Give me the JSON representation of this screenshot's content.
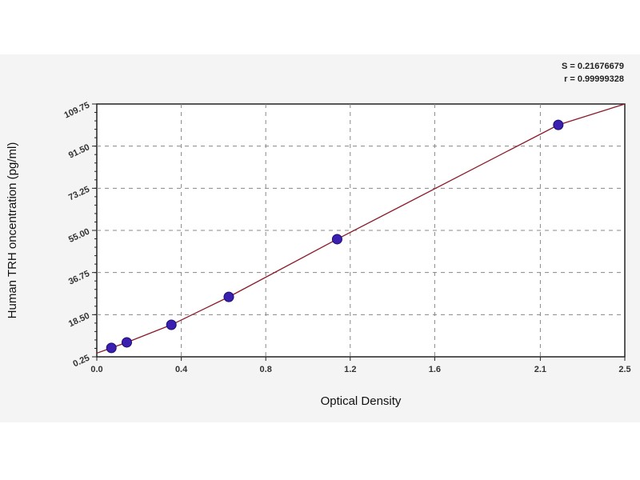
{
  "chart_data": {
    "type": "scatter",
    "xlabel": "Optical Density",
    "ylabel": "Human TRH oncentration (pg/ml)",
    "xlim": [
      0.0,
      2.5
    ],
    "ylim": [
      0.25,
      109.75
    ],
    "x_ticks": [
      0.0,
      0.4,
      0.8,
      1.2,
      1.6,
      2.1,
      2.5
    ],
    "x_tick_labels": [
      "0.0",
      "0.4",
      "0.8",
      "1.2",
      "1.6",
      "2.1",
      "2.5"
    ],
    "y_ticks": [
      0.25,
      18.5,
      36.75,
      55.0,
      73.25,
      91.5,
      109.75
    ],
    "y_tick_labels": [
      "0.25",
      "18.50",
      "36.75",
      "55.00",
      "73.25",
      "91.50",
      "109.75"
    ],
    "grid": true,
    "stats": [
      "S = 0.21676679",
      "r = 0.99999328"
    ],
    "series": [
      {
        "x": [
          0.069,
          0.142,
          0.353,
          0.625,
          1.138,
          2.185
        ],
        "y": [
          4.1,
          6.5,
          14.1,
          26.2,
          51.2,
          100.7
        ],
        "marker_color": "#3a1fb0",
        "line_color": "#8b1a2a"
      }
    ]
  }
}
